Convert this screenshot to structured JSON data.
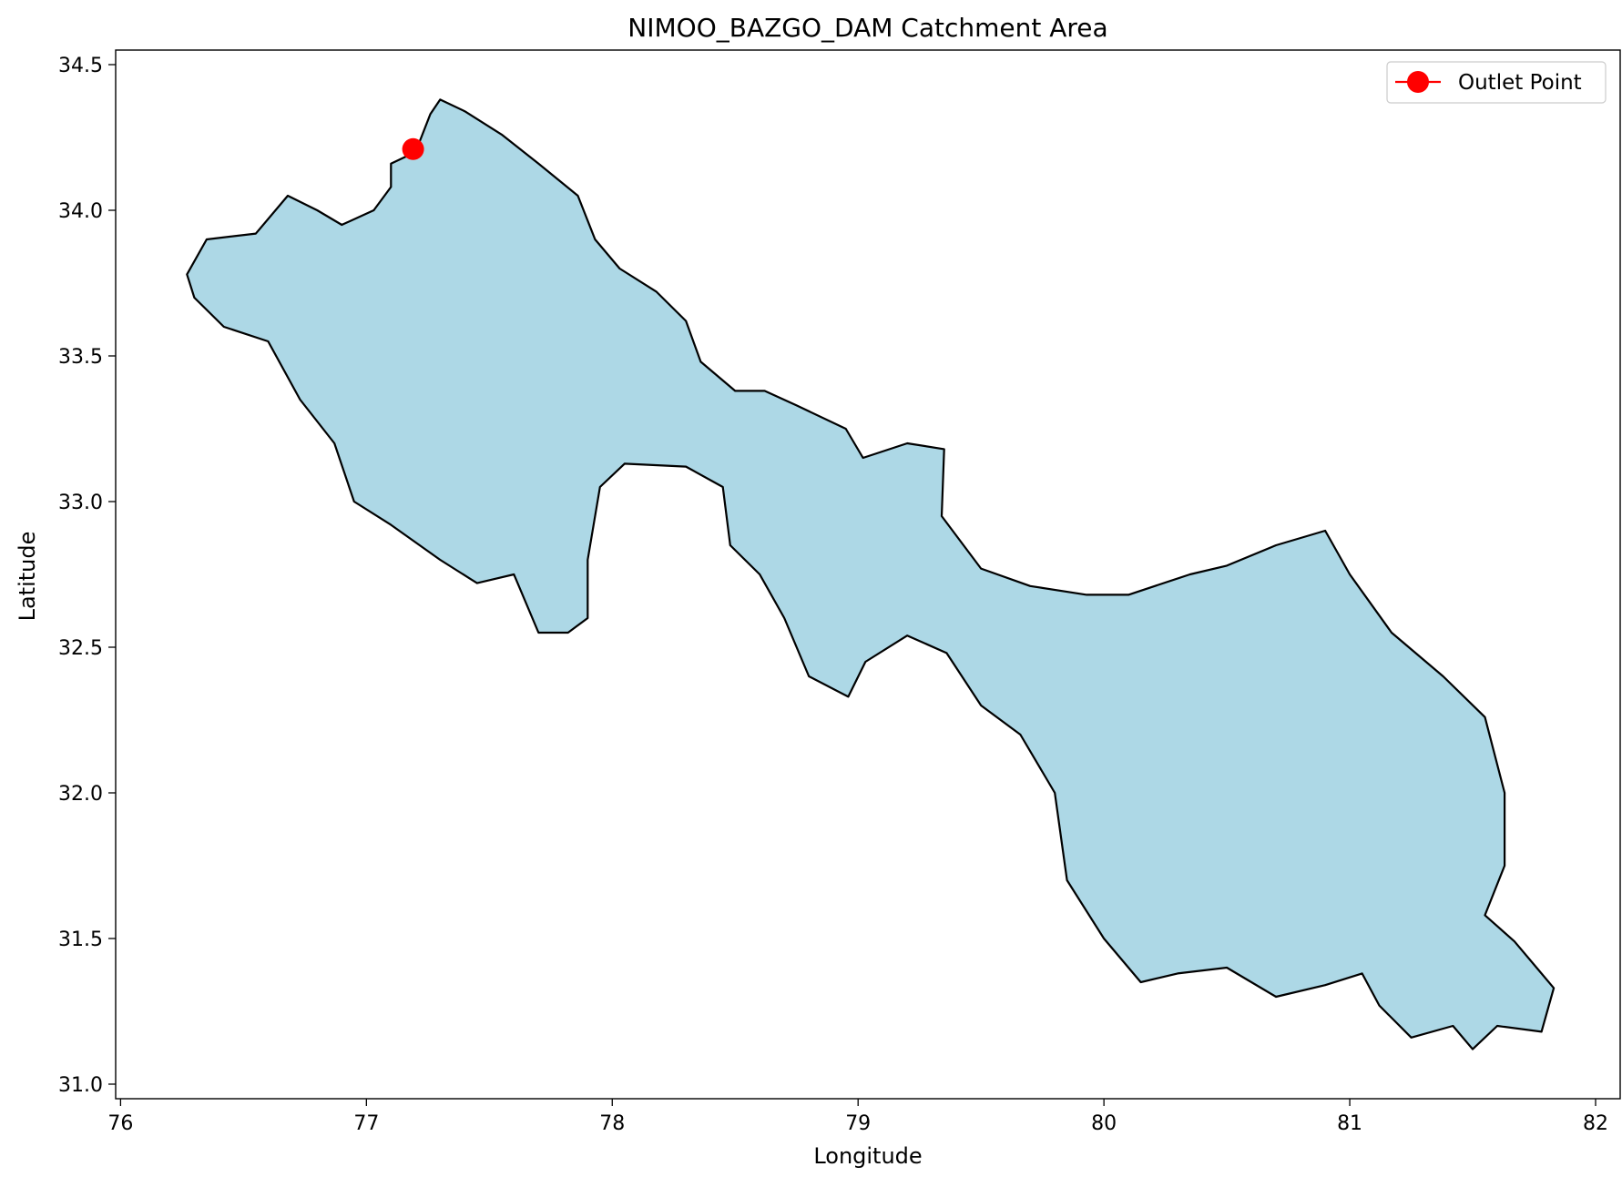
{
  "title": "NIMOO_BAZGO_DAM Catchment Area",
  "xlabel": "Longitude",
  "ylabel": "Latitude",
  "x_ticks": [
    "76",
    "77",
    "78",
    "79",
    "80",
    "81",
    "82"
  ],
  "y_ticks": [
    "31.0",
    "31.5",
    "32.0",
    "32.5",
    "33.0",
    "33.5",
    "34.0",
    "34.5"
  ],
  "colors": {
    "fill": "#add8e6",
    "boundary": "#000000",
    "outlet": "#ff0000"
  },
  "chart_data": {
    "type": "map",
    "title": "NIMOO_BAZGO_DAM Catchment Area",
    "xlabel": "Longitude",
    "ylabel": "Latitude",
    "xlim": [
      75.98,
      82.1
    ],
    "ylim": [
      30.95,
      34.55
    ],
    "legend": {
      "placement": "top-right",
      "entries": [
        {
          "label": "Outlet Point",
          "marker": "circle",
          "color": "#ff0000"
        }
      ]
    },
    "outlet_point": {
      "lon": 77.19,
      "lat": 34.21
    },
    "boundary": [
      [
        77.3,
        34.38
      ],
      [
        77.4,
        34.34
      ],
      [
        77.55,
        34.26
      ],
      [
        77.7,
        34.16
      ],
      [
        77.86,
        34.05
      ],
      [
        77.93,
        33.9
      ],
      [
        78.03,
        33.8
      ],
      [
        78.18,
        33.72
      ],
      [
        78.3,
        33.62
      ],
      [
        78.36,
        33.48
      ],
      [
        78.5,
        33.38
      ],
      [
        78.62,
        33.38
      ],
      [
        78.75,
        33.33
      ],
      [
        78.95,
        33.25
      ],
      [
        79.02,
        33.15
      ],
      [
        79.2,
        33.2
      ],
      [
        79.35,
        33.18
      ],
      [
        79.34,
        32.95
      ],
      [
        79.5,
        32.77
      ],
      [
        79.7,
        32.71
      ],
      [
        79.93,
        32.68
      ],
      [
        80.1,
        32.68
      ],
      [
        80.35,
        32.75
      ],
      [
        80.5,
        32.78
      ],
      [
        80.7,
        32.85
      ],
      [
        80.9,
        32.9
      ],
      [
        81.0,
        32.75
      ],
      [
        81.17,
        32.55
      ],
      [
        81.38,
        32.4
      ],
      [
        81.55,
        32.26
      ],
      [
        81.63,
        32.0
      ],
      [
        81.63,
        31.75
      ],
      [
        81.55,
        31.58
      ],
      [
        81.67,
        31.49
      ],
      [
        81.76,
        31.4
      ],
      [
        81.83,
        31.33
      ],
      [
        81.78,
        31.18
      ],
      [
        81.6,
        31.2
      ],
      [
        81.5,
        31.12
      ],
      [
        81.42,
        31.2
      ],
      [
        81.25,
        31.16
      ],
      [
        81.12,
        31.27
      ],
      [
        81.05,
        31.38
      ],
      [
        80.9,
        31.34
      ],
      [
        80.7,
        31.3
      ],
      [
        80.5,
        31.4
      ],
      [
        80.3,
        31.38
      ],
      [
        80.15,
        31.35
      ],
      [
        80.0,
        31.5
      ],
      [
        79.85,
        31.7
      ],
      [
        79.8,
        32.0
      ],
      [
        79.66,
        32.2
      ],
      [
        79.5,
        32.3
      ],
      [
        79.36,
        32.48
      ],
      [
        79.2,
        32.54
      ],
      [
        79.03,
        32.45
      ],
      [
        78.96,
        32.33
      ],
      [
        78.8,
        32.4
      ],
      [
        78.7,
        32.6
      ],
      [
        78.6,
        32.75
      ],
      [
        78.48,
        32.85
      ],
      [
        78.45,
        33.05
      ],
      [
        78.3,
        33.12
      ],
      [
        78.05,
        33.13
      ],
      [
        77.95,
        33.05
      ],
      [
        77.9,
        32.8
      ],
      [
        77.9,
        32.6
      ],
      [
        77.82,
        32.55
      ],
      [
        77.7,
        32.55
      ],
      [
        77.6,
        32.75
      ],
      [
        77.45,
        32.72
      ],
      [
        77.3,
        32.8
      ],
      [
        77.1,
        32.92
      ],
      [
        76.95,
        33.0
      ],
      [
        76.87,
        33.2
      ],
      [
        76.73,
        33.35
      ],
      [
        76.6,
        33.55
      ],
      [
        76.42,
        33.6
      ],
      [
        76.3,
        33.7
      ],
      [
        76.27,
        33.78
      ],
      [
        76.35,
        33.9
      ],
      [
        76.55,
        33.92
      ],
      [
        76.68,
        34.05
      ],
      [
        76.8,
        34.0
      ],
      [
        76.9,
        33.95
      ],
      [
        77.03,
        34.0
      ],
      [
        77.1,
        34.08
      ],
      [
        77.1,
        34.16
      ],
      [
        77.2,
        34.2
      ],
      [
        77.26,
        34.33
      ]
    ]
  }
}
